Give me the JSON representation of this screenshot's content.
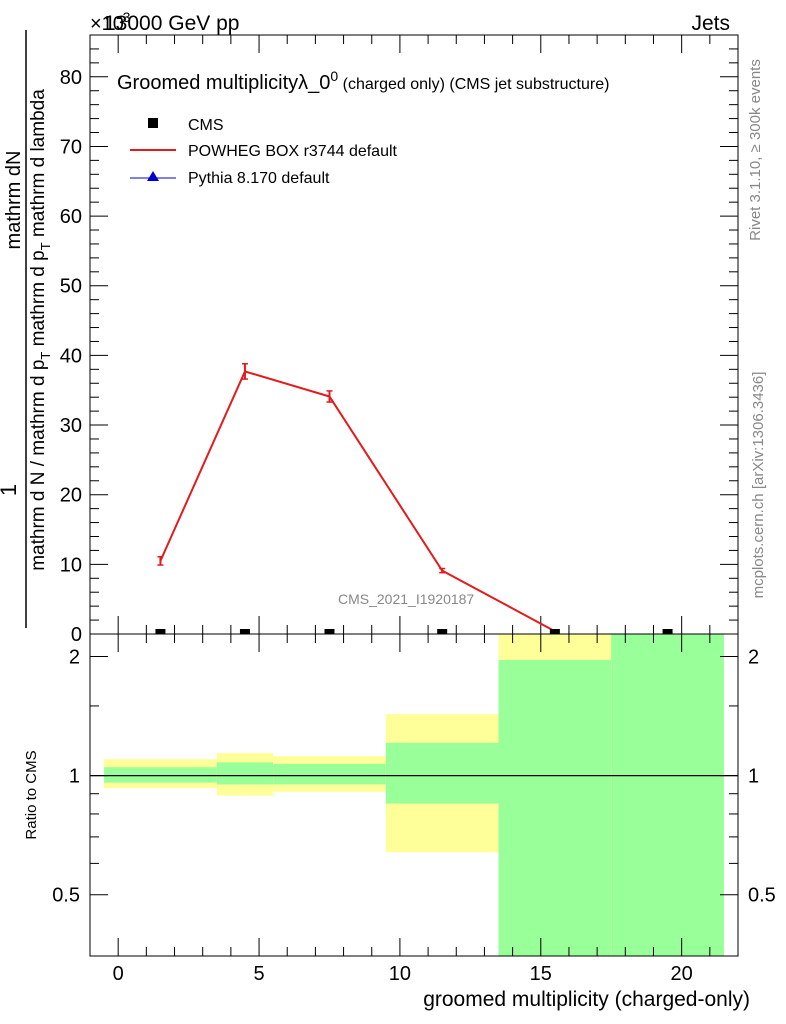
{
  "header": {
    "exponent_prefix": "×10",
    "exponent_power": "-3",
    "energy": "13000 GeV pp",
    "process": "Jets"
  },
  "title": {
    "main": "Groomed multiplicityλ_0",
    "superscript": "0",
    "tail": " (charged only) (CMS jet substructure)"
  },
  "ylabel": {
    "one": "1",
    "numerator": "mathrm dN",
    "denominator": "mathrm d N / mathrm d p",
    "denominator_sub": "T",
    "denominator_tail": " mathrm d p",
    "denominator_sub2": "T",
    "denominator_tail2": " mathrm d lambda"
  },
  "side_labels": {
    "rivet": "Rivet 3.1.10, ≥ 300k events",
    "mcplots": "mcplots.cern.ch [arXiv:1306.3436]"
  },
  "watermark": "CMS_2021_I1920187",
  "legend": [
    {
      "name": "CMS",
      "color": "#000000",
      "marker": "square"
    },
    {
      "name": "POWHEG BOX r3744 default",
      "color": "#e41a1c",
      "marker": "line"
    },
    {
      "name": "Pythia 8.170 default",
      "color": "#0000cc",
      "marker": "triangle"
    }
  ],
  "ratio_ylabel": "Ratio to CMS",
  "xlabel": "groomed multiplicity (charged-only)",
  "chart_data": [
    {
      "type": "line",
      "panel": "main",
      "title": "Groomed multiplicityλ_0^0 (charged only) (CMS jet substructure)",
      "xlabel": "groomed multiplicity (charged-only)",
      "ylabel": "1 / (mathrm d N / mathrm d p_T mathrm d p_T mathrm d lambda) mathrm dN",
      "y_scale_note": "×10^-3",
      "xlim": [
        -1,
        22
      ],
      "ylim": [
        0,
        86
      ],
      "x_ticks": [
        0,
        5,
        10,
        15,
        20
      ],
      "y_ticks": [
        10,
        20,
        30,
        40,
        50,
        60,
        70,
        80
      ],
      "cms_points": {
        "x": [
          1.5,
          4.5,
          7.5,
          11.5,
          15.5,
          19.5
        ],
        "y": [
          0,
          0,
          0,
          0,
          0,
          0
        ]
      },
      "series": [
        {
          "name": "POWHEG BOX r3744 default",
          "color": "#e41a1c",
          "x": [
            1.5,
            4.5,
            7.5,
            11.5,
            15.5
          ],
          "y": [
            10.5,
            37.7,
            34.1,
            9.1,
            0.4
          ],
          "err": [
            0.6,
            1.1,
            0.8,
            0.3,
            0.1
          ]
        }
      ]
    },
    {
      "type": "area",
      "panel": "ratio",
      "ylabel": "Ratio to CMS",
      "xlim": [
        -1,
        22
      ],
      "ylim": [
        0.35,
        2.28
      ],
      "y_ticks": [
        0.5,
        1,
        2
      ],
      "y_tick_labels": [
        "0.5",
        "1",
        "2"
      ],
      "reference": 1,
      "bins": [
        {
          "x": [
            -0.5,
            3.5
          ],
          "green": [
            0.96,
            1.05
          ],
          "yellow": [
            0.93,
            1.1
          ]
        },
        {
          "x": [
            3.5,
            5.5
          ],
          "green": [
            0.95,
            1.08
          ],
          "yellow": [
            0.89,
            1.14
          ]
        },
        {
          "x": [
            5.5,
            9.5
          ],
          "green": [
            0.95,
            1.07
          ],
          "yellow": [
            0.91,
            1.12
          ]
        },
        {
          "x": [
            9.5,
            13.5
          ],
          "green": [
            0.85,
            1.21
          ],
          "yellow": [
            0.64,
            1.43
          ]
        },
        {
          "x": [
            13.5,
            17.5
          ],
          "green": [
            0.35,
            1.96
          ],
          "yellow": [
            0.35,
            2.28
          ]
        },
        {
          "x": [
            17.5,
            21.5
          ],
          "green": [
            0.35,
            2.28
          ],
          "yellow": [
            0.35,
            2.28
          ]
        }
      ],
      "colors": {
        "green": "#99ff99",
        "yellow": "#ffff99"
      }
    }
  ]
}
